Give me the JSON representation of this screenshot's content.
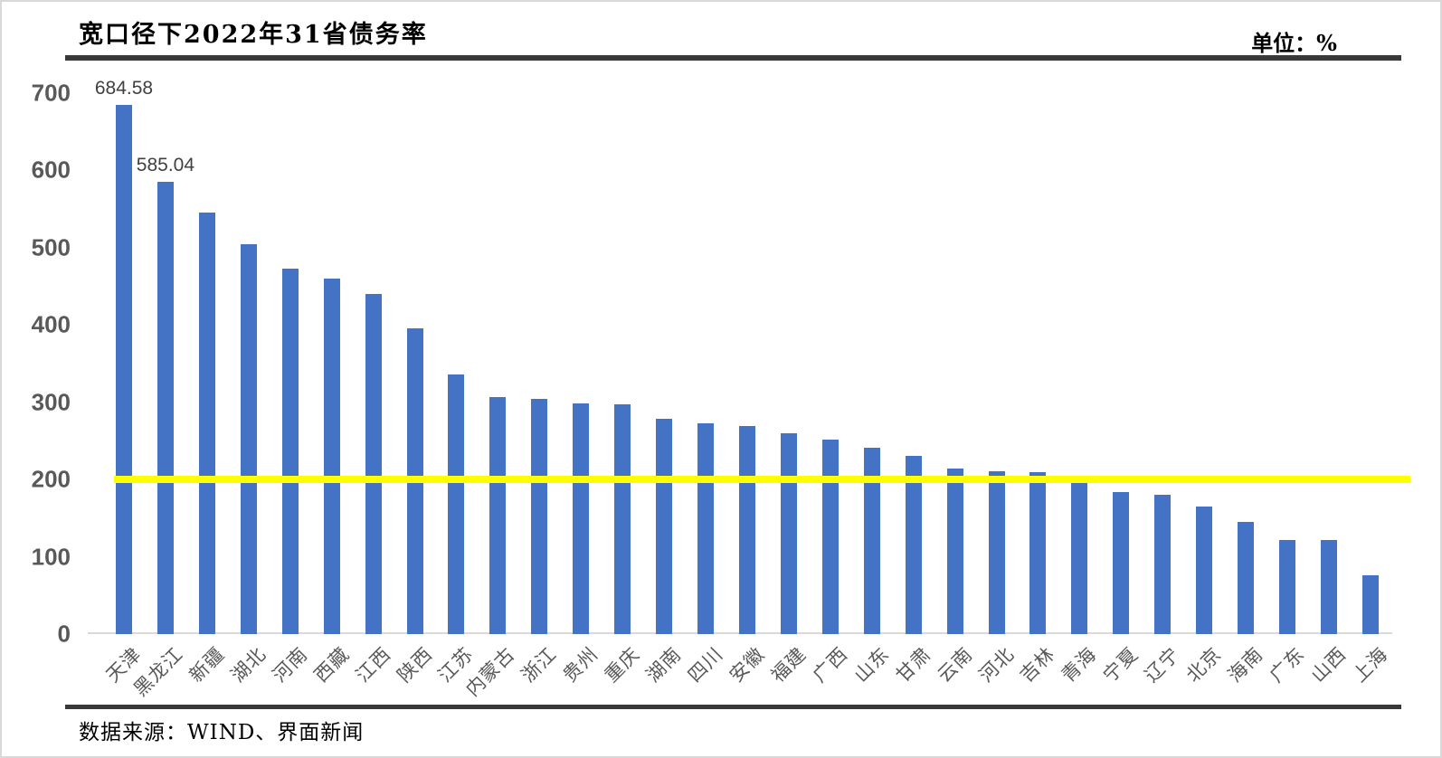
{
  "header": {
    "title": "宽口径下2022年31省债务率",
    "unit_label": "单位：%"
  },
  "footer": {
    "source": "数据来源：WIND、界面新闻"
  },
  "chart_data": {
    "type": "bar",
    "title": "宽口径下2022年31省债务率",
    "unit_label": "单位：%",
    "source": "数据来源：WIND、界面新闻",
    "categories": [
      "天津",
      "黑龙江",
      "新疆",
      "湖北",
      "河南",
      "西藏",
      "江西",
      "陕西",
      "江苏",
      "内蒙古",
      "浙江",
      "贵州",
      "重庆",
      "湖南",
      "四川",
      "安徽",
      "福建",
      "广西",
      "山东",
      "甘肃",
      "云南",
      "河北",
      "吉林",
      "青海",
      "宁夏",
      "辽宁",
      "北京",
      "海南",
      "广东",
      "山西",
      "上海"
    ],
    "values": [
      684.58,
      585.04,
      545,
      504,
      472,
      460,
      440,
      395,
      336,
      307,
      304,
      298,
      297,
      278,
      273,
      269,
      260,
      251,
      241,
      230,
      214,
      211,
      209,
      195,
      184,
      180,
      165,
      145,
      122,
      122,
      76
    ],
    "data_labels": [
      "684.58",
      "585.04",
      null,
      null,
      null,
      null,
      null,
      null,
      null,
      null,
      null,
      null,
      null,
      null,
      null,
      null,
      null,
      null,
      null,
      null,
      null,
      null,
      null,
      null,
      null,
      null,
      null,
      null,
      null,
      null,
      null
    ],
    "xlabel": "",
    "ylabel": "",
    "ylim": [
      0,
      700
    ],
    "ytick_step": 100,
    "grid": false,
    "legend": false,
    "threshold_line": {
      "value": 200,
      "color": "#FFFF00"
    },
    "bar_color": "#4472C4",
    "axis_label_color": "#595959"
  }
}
